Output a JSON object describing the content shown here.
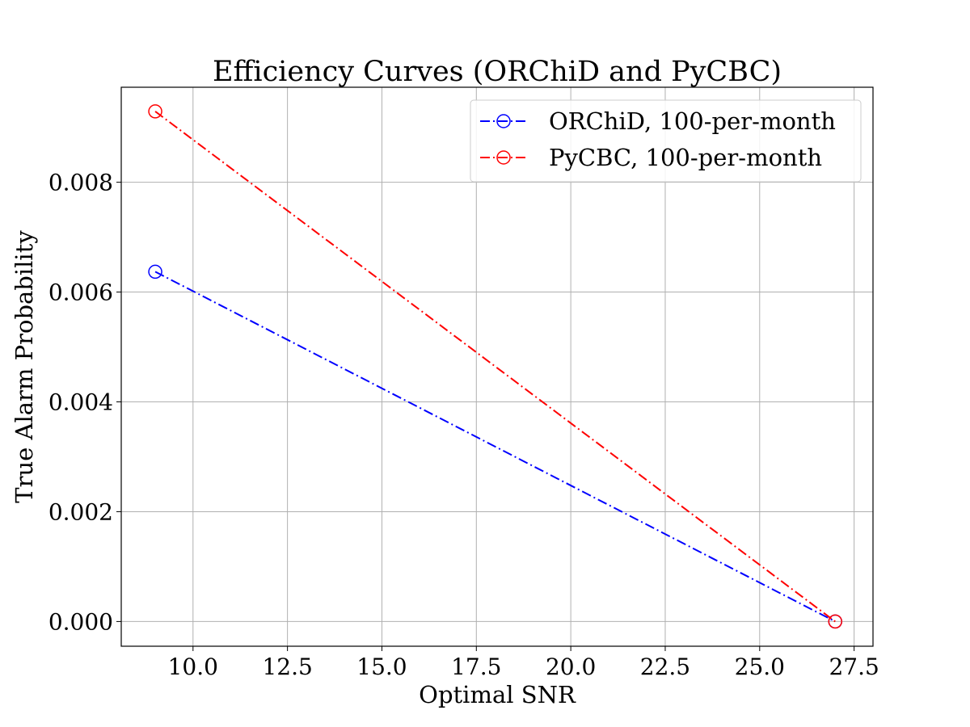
{
  "chart_data": {
    "type": "line",
    "title": "Efficiency Curves (ORChiD and PyCBC)",
    "xlabel": "Optimal SNR",
    "ylabel": "True Alarm Probability",
    "xlim": [
      8.1,
      28.0
    ],
    "ylim": [
      -0.00045,
      0.00973
    ],
    "xticks": [
      10.0,
      12.5,
      15.0,
      17.5,
      20.0,
      22.5,
      25.0,
      27.5
    ],
    "xtick_labels": [
      "10.0",
      "12.5",
      "15.0",
      "17.5",
      "20.0",
      "22.5",
      "25.0",
      "27.5"
    ],
    "yticks": [
      0.0,
      0.002,
      0.004,
      0.006,
      0.008
    ],
    "ytick_labels": [
      "0.000",
      "0.002",
      "0.004",
      "0.006",
      "0.008"
    ],
    "grid": true,
    "legend_position": "top-right",
    "series": [
      {
        "name": "ORChiD, 100-per-month",
        "color": "#0000ff",
        "linestyle": "dash-dot",
        "marker": "open-circle",
        "x": [
          9.0,
          27.0
        ],
        "y": [
          0.00637,
          0.0
        ]
      },
      {
        "name": "PyCBC, 100-per-month",
        "color": "#ff0000",
        "linestyle": "dash-dot",
        "marker": "open-circle",
        "x": [
          9.0,
          27.0
        ],
        "y": [
          0.00929,
          0.0
        ]
      }
    ]
  }
}
